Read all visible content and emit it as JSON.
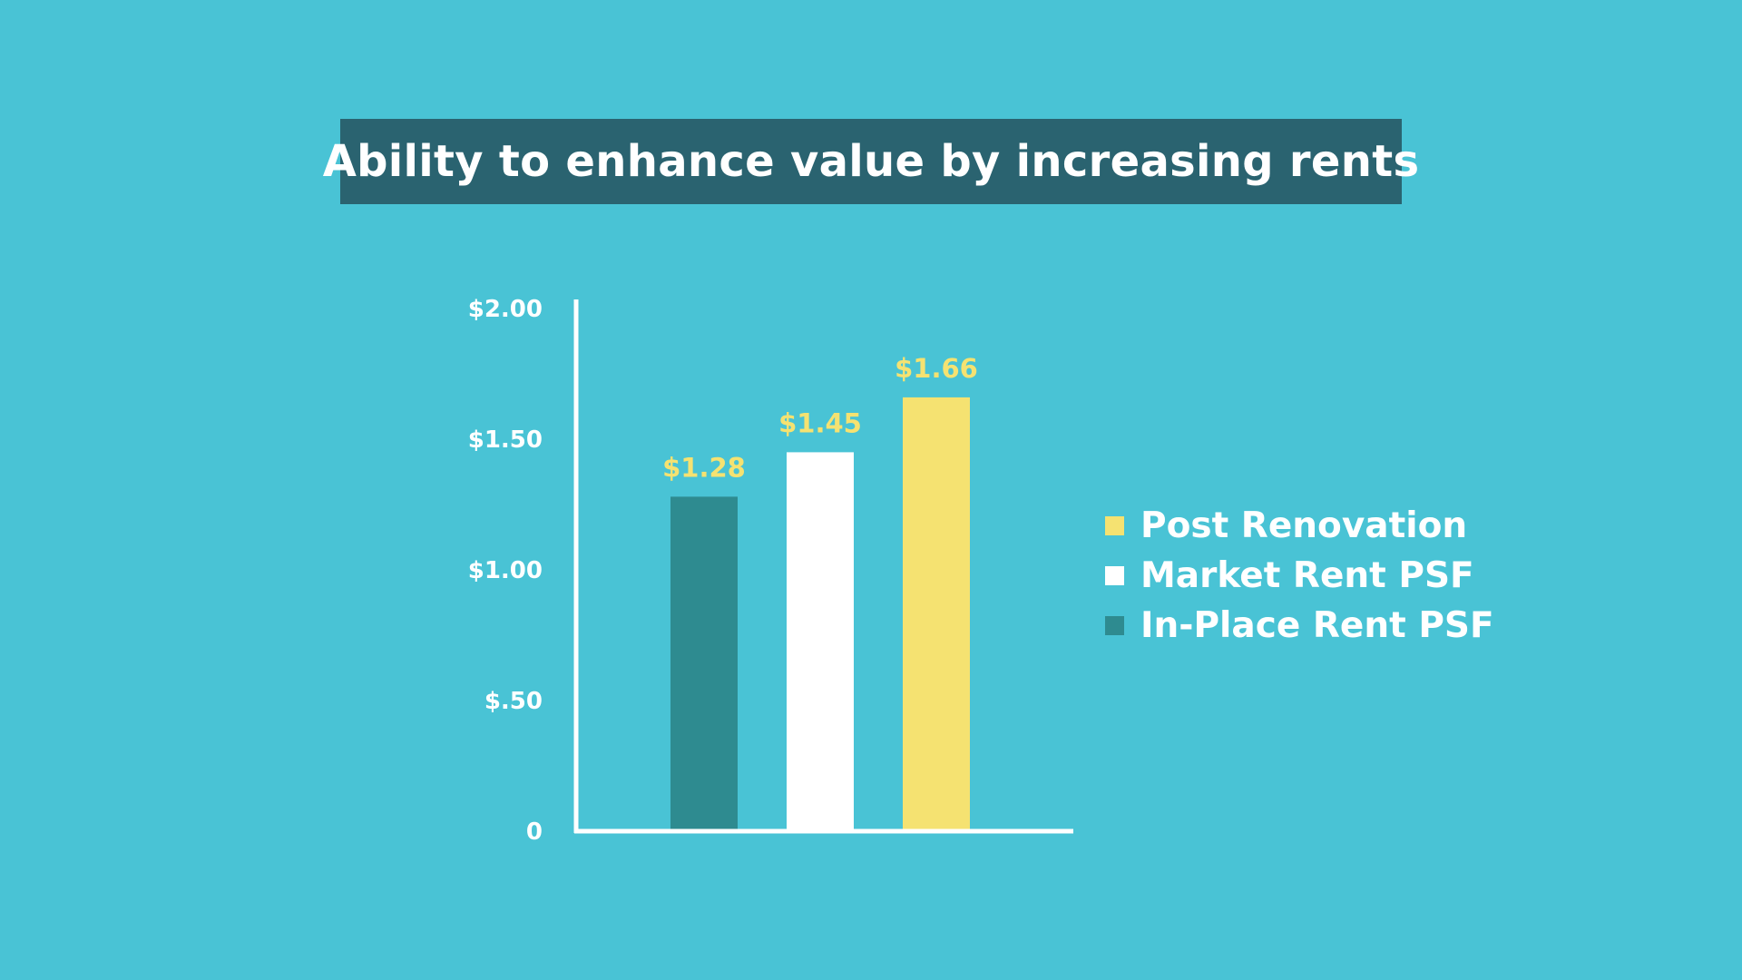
{
  "chart_data": {
    "type": "bar",
    "title": "Ability to enhance value by increasing rents",
    "xlabel": "",
    "ylabel": "",
    "ylim": [
      0,
      2.0
    ],
    "y_ticks": [
      {
        "value": 0,
        "label": "0"
      },
      {
        "value": 0.5,
        "label": "$.50"
      },
      {
        "value": 1.0,
        "label": "$1.00"
      },
      {
        "value": 1.5,
        "label": "$1.50"
      },
      {
        "value": 2.0,
        "label": "$2.00"
      }
    ],
    "grid": false,
    "legend_position": "right",
    "series": [
      {
        "name": "In-Place Rent PSF",
        "value": 1.28,
        "label": "$1.28",
        "color": "#2e8b90"
      },
      {
        "name": "Market Rent PSF",
        "value": 1.45,
        "label": "$1.45",
        "color": "#ffffff"
      },
      {
        "name": "Post Renovation",
        "value": 1.66,
        "label": "$1.66",
        "color": "#f5e271"
      }
    ],
    "legend": [
      {
        "name": "Post Renovation",
        "color": "#f5e271"
      },
      {
        "name": "Market Rent PSF",
        "color": "#ffffff"
      },
      {
        "name": "In-Place Rent PSF",
        "color": "#2e8b90"
      }
    ],
    "data_label_color": "#f5e271",
    "axis_color": "#ffffff"
  }
}
